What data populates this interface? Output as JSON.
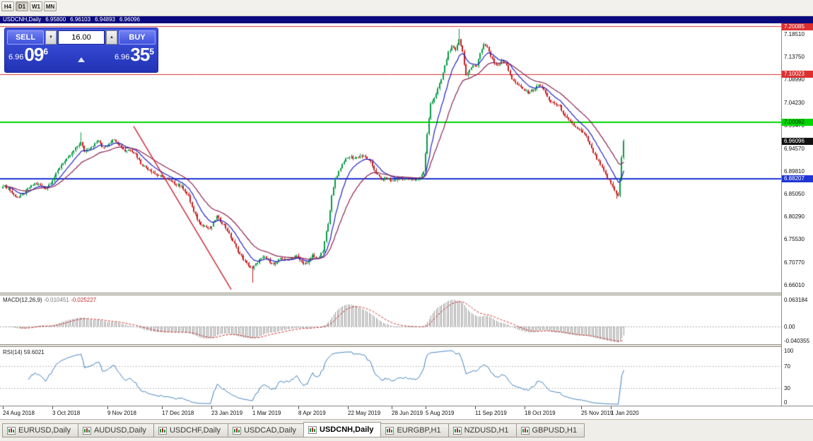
{
  "timeframe_toolbar": {
    "buttons": [
      "H4",
      "D1",
      "W1",
      "MN"
    ],
    "active": "D1"
  },
  "window_title": {
    "symbol": "USDCNH,Daily",
    "open": "6.95800",
    "high": "6.96103",
    "low": "6.94893",
    "close": "6.96096"
  },
  "trade_panel": {
    "sell_label": "SELL",
    "buy_label": "BUY",
    "lot_value": "16.00",
    "sell_price": {
      "prefix": "6.96",
      "big": "09",
      "sup": "6"
    },
    "buy_price": {
      "prefix": "6.96",
      "big": "35",
      "sup": "5"
    }
  },
  "chart_data": {
    "type": "candlestick",
    "symbol": "USDCNH",
    "timeframe": "Daily",
    "n_candles": 352,
    "price_scale": {
      "top": 7.2075,
      "bottom": 6.6435
    },
    "axis_ticks": [
      {
        "v": 7.1851,
        "label": "7.18510"
      },
      {
        "v": 7.1375,
        "label": "7.13750"
      },
      {
        "v": 7.0899,
        "label": "7.08990"
      },
      {
        "v": 7.0423,
        "label": "7.04230"
      },
      {
        "v": 6.9947,
        "label": "6.99470"
      },
      {
        "v": 6.9457,
        "label": "6.94570"
      },
      {
        "v": 6.8981,
        "label": "6.89810"
      },
      {
        "v": 6.8505,
        "label": "6.85050"
      },
      {
        "v": 6.8029,
        "label": "6.80290"
      },
      {
        "v": 6.7553,
        "label": "6.75530"
      },
      {
        "v": 6.7077,
        "label": "6.70770"
      },
      {
        "v": 6.6601,
        "label": "6.66010"
      }
    ],
    "levels": [
      {
        "value": 7.20085,
        "label": "7.20085",
        "color": "#DC3030",
        "badge_bg": "#DC3030",
        "badge_fg": "#FFFFFF",
        "width": 1
      },
      {
        "value": 7.10023,
        "label": "7.10023",
        "color": "#DC3030",
        "badge_bg": "#DC3030",
        "badge_fg": "#FFFFFF",
        "width": 1
      },
      {
        "value": 7.00062,
        "label": "7.00062",
        "color": "#00D400",
        "badge_bg": "#00D400",
        "badge_fg": "#003000",
        "width": 2
      },
      {
        "value": 6.88207,
        "label": "6.88207",
        "color": "#1F35D4",
        "badge_bg": "#1F35D4",
        "badge_fg": "#FFFFFF",
        "width": 2
      }
    ],
    "current_price": {
      "value": 6.96096,
      "label": "6.96096",
      "badge_bg": "#111111",
      "badge_fg": "#FFFFFF"
    },
    "candles": {
      "up_color": "#089B46",
      "down_color": "#C41E1E",
      "noise": 0.005,
      "last_close": 6.96096,
      "close_anchors": [
        [
          0,
          6.868
        ],
        [
          3,
          6.862
        ],
        [
          6,
          6.848
        ],
        [
          9,
          6.843
        ],
        [
          12,
          6.852
        ],
        [
          15,
          6.864
        ],
        [
          18,
          6.872
        ],
        [
          21,
          6.868
        ],
        [
          24,
          6.862
        ],
        [
          27,
          6.874
        ],
        [
          30,
          6.892
        ],
        [
          33,
          6.912
        ],
        [
          36,
          6.922
        ],
        [
          39,
          6.936
        ],
        [
          42,
          6.95
        ],
        [
          44,
          6.958
        ],
        [
          46,
          6.94
        ],
        [
          48,
          6.944
        ],
        [
          51,
          6.952
        ],
        [
          54,
          6.962
        ],
        [
          56,
          6.948
        ],
        [
          58,
          6.95
        ],
        [
          60,
          6.957
        ],
        [
          63,
          6.966
        ],
        [
          66,
          6.952
        ],
        [
          69,
          6.94
        ],
        [
          72,
          6.944
        ],
        [
          75,
          6.934
        ],
        [
          78,
          6.914
        ],
        [
          81,
          6.905
        ],
        [
          84,
          6.898
        ],
        [
          87,
          6.89
        ],
        [
          90,
          6.885
        ],
        [
          93,
          6.88
        ],
        [
          96,
          6.874
        ],
        [
          99,
          6.87
        ],
        [
          102,
          6.862
        ],
        [
          105,
          6.844
        ],
        [
          108,
          6.812
        ],
        [
          111,
          6.79
        ],
        [
          114,
          6.783
        ],
        [
          117,
          6.776
        ],
        [
          119,
          6.79
        ],
        [
          121,
          6.803
        ],
        [
          123,
          6.793
        ],
        [
          125,
          6.785
        ],
        [
          127,
          6.773
        ],
        [
          129,
          6.758
        ],
        [
          131,
          6.745
        ],
        [
          133,
          6.73
        ],
        [
          136,
          6.713
        ],
        [
          139,
          6.7
        ],
        [
          141,
          6.693
        ],
        [
          143,
          6.703
        ],
        [
          145,
          6.712
        ],
        [
          148,
          6.718
        ],
        [
          151,
          6.708
        ],
        [
          154,
          6.703
        ],
        [
          157,
          6.715
        ],
        [
          160,
          6.712
        ],
        [
          163,
          6.716
        ],
        [
          166,
          6.72
        ],
        [
          169,
          6.707
        ],
        [
          172,
          6.703
        ],
        [
          175,
          6.722
        ],
        [
          178,
          6.714
        ],
        [
          181,
          6.73
        ],
        [
          184,
          6.79
        ],
        [
          186,
          6.845
        ],
        [
          188,
          6.882
        ],
        [
          190,
          6.898
        ],
        [
          193,
          6.92
        ],
        [
          196,
          6.928
        ],
        [
          199,
          6.925
        ],
        [
          202,
          6.93
        ],
        [
          205,
          6.927
        ],
        [
          208,
          6.916
        ],
        [
          211,
          6.894
        ],
        [
          214,
          6.88
        ],
        [
          217,
          6.884
        ],
        [
          220,
          6.877
        ],
        [
          223,
          6.882
        ],
        [
          226,
          6.884
        ],
        [
          229,
          6.881
        ],
        [
          232,
          6.88
        ],
        [
          235,
          6.882
        ],
        [
          238,
          6.896
        ],
        [
          240,
          6.975
        ],
        [
          242,
          7.04
        ],
        [
          244,
          7.052
        ],
        [
          246,
          7.07
        ],
        [
          248,
          7.09
        ],
        [
          250,
          7.118
        ],
        [
          252,
          7.148
        ],
        [
          254,
          7.158
        ],
        [
          256,
          7.15
        ],
        [
          258,
          7.176
        ],
        [
          260,
          7.148
        ],
        [
          262,
          7.098
        ],
        [
          264,
          7.108
        ],
        [
          266,
          7.122
        ],
        [
          268,
          7.118
        ],
        [
          270,
          7.146
        ],
        [
          272,
          7.164
        ],
        [
          274,
          7.158
        ],
        [
          276,
          7.138
        ],
        [
          278,
          7.124
        ],
        [
          280,
          7.12
        ],
        [
          282,
          7.13
        ],
        [
          284,
          7.126
        ],
        [
          286,
          7.108
        ],
        [
          288,
          7.092
        ],
        [
          290,
          7.082
        ],
        [
          292,
          7.076
        ],
        [
          294,
          7.07
        ],
        [
          297,
          7.063
        ],
        [
          300,
          7.068
        ],
        [
          303,
          7.078
        ],
        [
          306,
          7.07
        ],
        [
          309,
          7.044
        ],
        [
          312,
          7.04
        ],
        [
          315,
          7.034
        ],
        [
          318,
          7.012
        ],
        [
          321,
          7.0
        ],
        [
          324,
          6.99
        ],
        [
          327,
          6.982
        ],
        [
          330,
          6.97
        ],
        [
          333,
          6.944
        ],
        [
          336,
          6.923
        ],
        [
          339,
          6.904
        ],
        [
          342,
          6.883
        ],
        [
          344,
          6.872
        ],
        [
          346,
          6.857
        ],
        [
          348,
          6.848
        ],
        [
          349,
          6.88
        ],
        [
          350,
          6.926
        ],
        [
          351,
          6.96096
        ]
      ],
      "high_overrides": [
        [
          258,
          7.196
        ],
        [
          44,
          6.979
        ]
      ],
      "low_overrides": [
        [
          347,
          6.84
        ],
        [
          141,
          6.664
        ]
      ]
    },
    "moving_averages": [
      {
        "period": 10,
        "color": "#2020C8"
      },
      {
        "period": 24,
        "color": "#8B2052"
      }
    ],
    "trendline": {
      "from": [
        74,
        6.992
      ],
      "to": [
        129,
        6.65
      ],
      "color": "#CC2030"
    },
    "date_axis": [
      [
        "24 Aug 2018",
        0
      ],
      [
        "3 Oct 2018",
        28
      ],
      [
        "9 Nov 2018",
        59
      ],
      [
        "17 Dec 2018",
        90
      ],
      [
        "23 Jan 2019",
        118
      ],
      [
        "1 Mar 2019",
        141
      ],
      [
        "8 Apr 2019",
        167
      ],
      [
        "22 May 2019",
        195
      ],
      [
        "28 Jun 2019",
        220
      ],
      [
        "5 Aug 2019",
        239
      ],
      [
        "11 Sep 2019",
        267
      ],
      [
        "18 Oct 2019",
        295
      ],
      [
        "25 Nov 2019",
        327
      ],
      [
        "1 Jan 2020",
        344
      ]
    ],
    "macd": {
      "label": "MACD(12,26,9)",
      "value": "-0.010451",
      "signal_value": "-0.025227",
      "fast": 12,
      "slow": 26,
      "signal": 9,
      "hist_color": "#9A9A9A",
      "signal_color": "#CC2222",
      "axis_labels": [
        {
          "v": 0.063184,
          "label": "0.063184"
        },
        {
          "v": 0,
          "label": "0.00"
        },
        {
          "v": -0.040355,
          "label": "-0.040355"
        }
      ]
    },
    "rsi": {
      "label": "RSI(14)",
      "value": "59.6021",
      "period": 14,
      "color": "#3C7EBF",
      "level_lines": [
        70,
        30
      ],
      "axis_labels": [
        {
          "v": 100,
          "label": "100"
        },
        {
          "v": 70,
          "label": "70"
        },
        {
          "v": 30,
          "label": "30"
        },
        {
          "v": 0,
          "label": "0"
        }
      ]
    }
  },
  "tabs": {
    "active_index": 4,
    "items": [
      "EURUSD,Daily",
      "AUDUSD,Daily",
      "USDCHF,Daily",
      "USDCAD,Daily",
      "USDCNH,Daily",
      "EURGBP,H1",
      "NZDUSD,H1",
      "GBPUSD,H1"
    ]
  }
}
